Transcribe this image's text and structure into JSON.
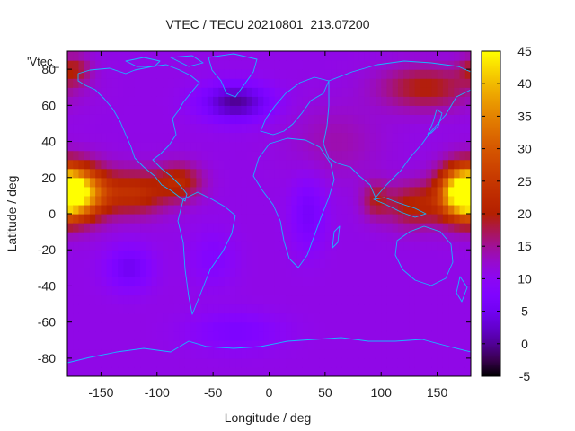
{
  "chart_data": {
    "type": "heatmap",
    "title": "VTEC / TECU 20210801_213.07200",
    "xlabel": "Longitude / deg",
    "ylabel": "Latitude / deg",
    "legend_key": "'Vtec_",
    "xlim": [
      -180,
      180
    ],
    "ylim": [
      -90,
      90
    ],
    "x_ticks": [
      -150,
      -100,
      -50,
      0,
      50,
      100,
      150
    ],
    "y_ticks": [
      -80,
      -60,
      -40,
      -20,
      0,
      20,
      40,
      60,
      80
    ],
    "colorbar": {
      "range": [
        -5,
        45
      ],
      "ticks": [
        -5,
        0,
        5,
        10,
        15,
        20,
        25,
        30,
        35,
        40,
        45
      ]
    },
    "grid_step": [
      5,
      5
    ],
    "field": {
      "background": 11,
      "features": [
        {
          "lon": -170,
          "lat": 12,
          "amp": 29,
          "rlon": 25,
          "rlat": 14
        },
        {
          "lon": -120,
          "lat": 12,
          "amp": 12,
          "rlon": 28,
          "rlat": 12
        },
        {
          "lon": -80,
          "lat": 18,
          "amp": 10,
          "rlon": 20,
          "rlat": 10
        },
        {
          "lon": 172,
          "lat": 12,
          "amp": 30,
          "rlon": 20,
          "rlat": 14
        },
        {
          "lon": 130,
          "lat": 5,
          "amp": 10,
          "rlon": 25,
          "rlat": 12
        },
        {
          "lon": 95,
          "lat": 8,
          "amp": 7,
          "rlon": 12,
          "rlat": 10
        },
        {
          "lon": 140,
          "lat": 70,
          "amp": 9,
          "rlon": 40,
          "rlat": 12
        },
        {
          "lon": -175,
          "lat": 80,
          "amp": 8,
          "rlon": 15,
          "rlat": 8
        },
        {
          "lon": -30,
          "lat": 62,
          "amp": -11,
          "rlon": 30,
          "rlat": 10
        },
        {
          "lon": -125,
          "lat": -30,
          "amp": -6,
          "rlon": 20,
          "rlat": 12
        },
        {
          "lon": 35,
          "lat": 0,
          "amp": -5,
          "rlon": 15,
          "rlat": 20
        },
        {
          "lon": -50,
          "lat": -25,
          "amp": -3,
          "rlon": 20,
          "rlat": 15
        },
        {
          "lon": -30,
          "lat": -65,
          "amp": -4,
          "rlon": 40,
          "rlat": 10
        },
        {
          "lon": 60,
          "lat": 40,
          "amp": 3,
          "rlon": 40,
          "rlat": 20
        }
      ]
    }
  }
}
